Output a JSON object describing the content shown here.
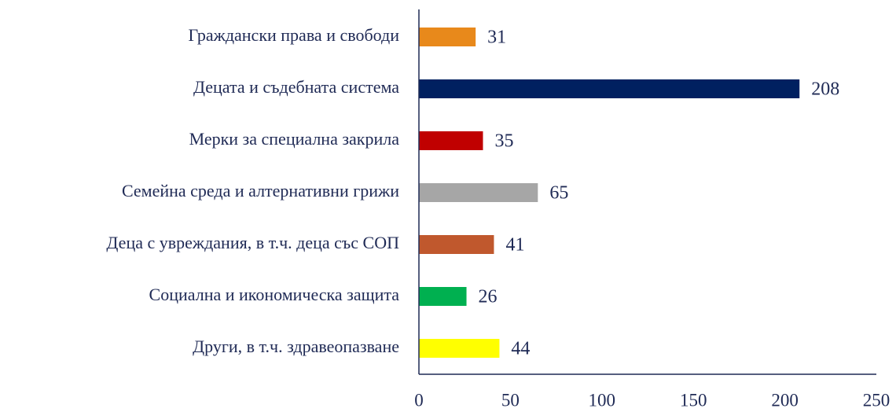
{
  "chart_data": {
    "type": "barh",
    "categories": [
      "Граждански права и свободи",
      "Децата и съдебната система",
      "Мерки за специална закрила",
      "Семейна среда и алтернативни грижи",
      "Деца с увреждания, в т.ч. деца със СОП",
      "Социална и икономическа защита",
      "Други, в т.ч. здравеопазване"
    ],
    "values": [
      31,
      208,
      35,
      65,
      41,
      26,
      44
    ],
    "colors": [
      "#e8891b",
      "#002060",
      "#c00000",
      "#a6a6a6",
      "#c0582d",
      "#00b050",
      "#ffff00"
    ],
    "xlim": [
      0,
      250
    ],
    "xticks": [
      0,
      50,
      100,
      150,
      200,
      250
    ],
    "grid": false
  }
}
